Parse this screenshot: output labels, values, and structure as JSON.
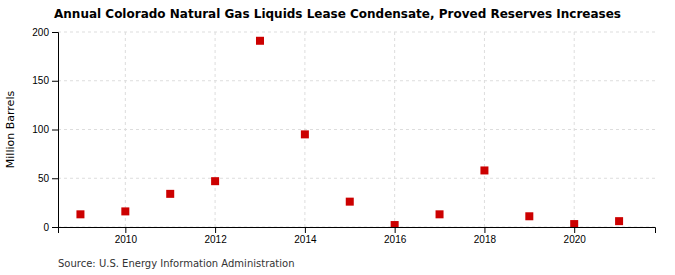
{
  "chart_data": {
    "type": "scatter",
    "title": "Annual Colorado Natural Gas Liquids Lease Condensate, Proved Reserves Increases",
    "ylabel": "Million Barrels",
    "source": "Source: U.S. Energy Information Administration",
    "x": [
      2009,
      2010,
      2011,
      2012,
      2013,
      2014,
      2015,
      2016,
      2017,
      2018,
      2019,
      2020,
      2021
    ],
    "values": [
      13,
      16,
      34,
      47,
      191,
      95,
      26,
      2,
      13,
      58,
      11,
      3,
      6
    ],
    "color": "#cc0000",
    "marker": "square",
    "xlim": [
      2008.5,
      2021.8
    ],
    "xticks": [
      2010,
      2012,
      2014,
      2016,
      2018,
      2020
    ],
    "ylim": [
      0,
      200
    ],
    "yticks": [
      0,
      50,
      100,
      150,
      200
    ],
    "grid": true
  }
}
